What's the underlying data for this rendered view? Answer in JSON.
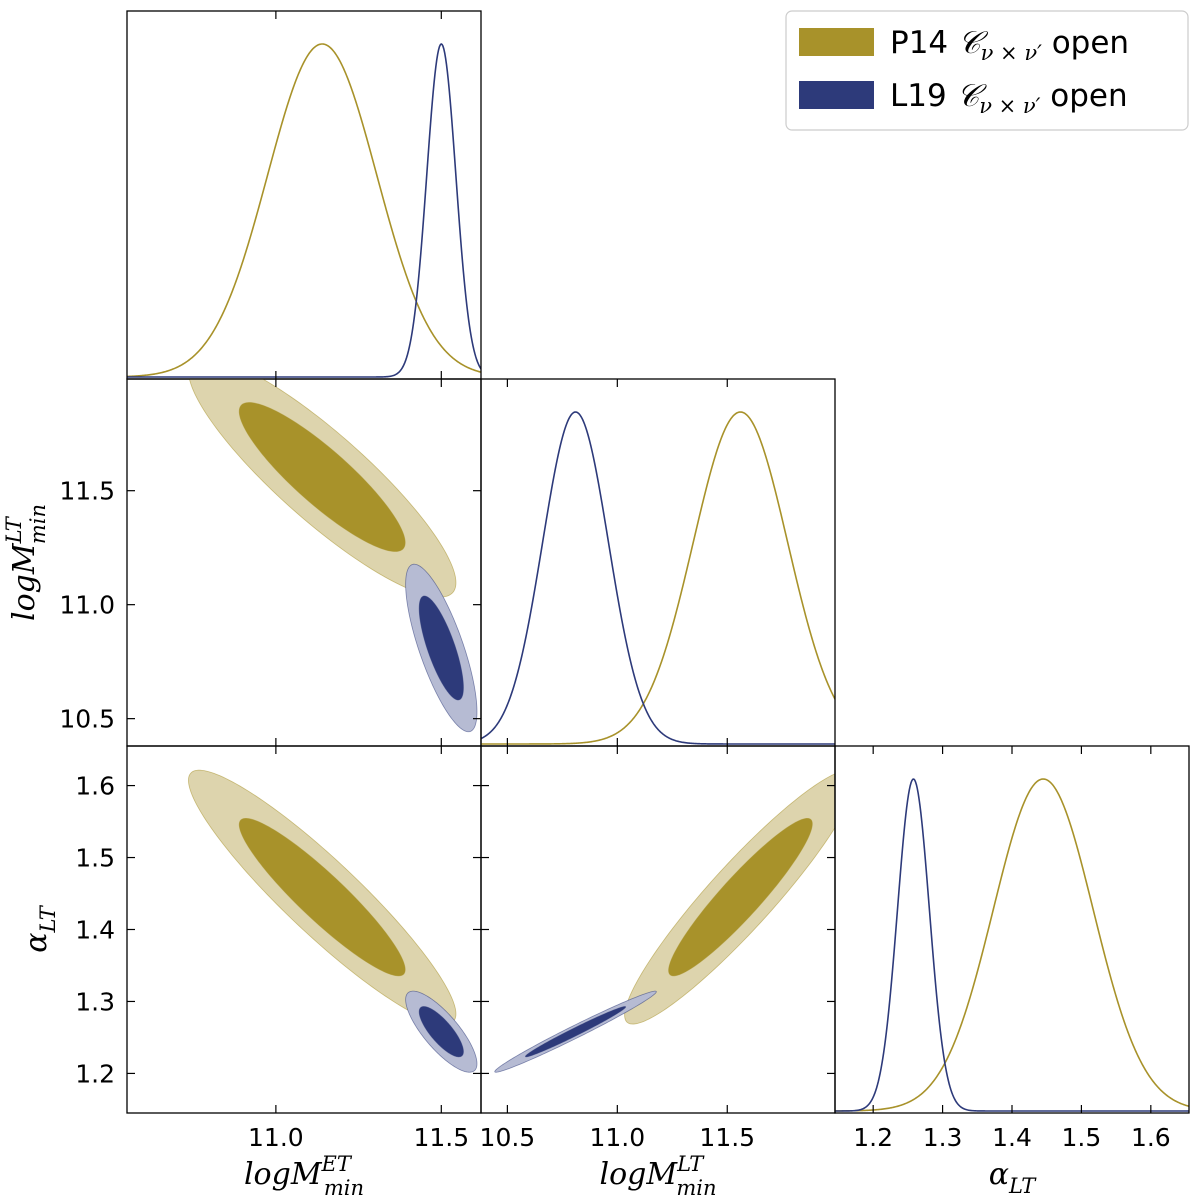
{
  "chart_data": {
    "type": "corner",
    "legend": {
      "placement": "top-right",
      "entries": [
        {
          "prefix": "P14",
          "math": "𝒞",
          "math_sub": "ν × ν′",
          "suffix": "open",
          "color": "#a8922a"
        },
        {
          "prefix": "L19",
          "math": "𝒞",
          "math_sub": "ν × ν′",
          "suffix": "open",
          "color": "#2d3a7a"
        }
      ]
    },
    "parameters": [
      {
        "key": "logM_ET",
        "label_main": "logM",
        "label_sub": "min",
        "label_sup": "ET",
        "range": [
          10.55,
          11.62
        ],
        "ticks": [
          "11.0",
          "11.5"
        ]
      },
      {
        "key": "logM_LT",
        "label_main": "logM",
        "label_sub": "min",
        "label_sup": "LT",
        "range": [
          10.38,
          11.99
        ],
        "ticks": [
          "10.5",
          "11.0",
          "11.5"
        ]
      },
      {
        "key": "alpha_LT",
        "label_main": "α",
        "label_sub": "LT",
        "label_sup": "",
        "range": [
          1.145,
          1.655
        ],
        "ticks": [
          "1.2",
          "1.3",
          "1.4",
          "1.5",
          "1.6"
        ]
      }
    ],
    "series": [
      {
        "name": "P14",
        "color": "#a8922a",
        "fill_inner": "#a8922a",
        "fill_outer": "#ddd4ad",
        "mean": [
          11.14,
          11.56,
          1.445
        ],
        "sigma": [
          0.165,
          0.215,
          0.072
        ],
        "corr": {
          "0-1": -0.88,
          "0-2": -0.92,
          "1-2": 0.93
        }
      },
      {
        "name": "L19",
        "color": "#2d3a7a",
        "fill_inner": "#2d3a7a",
        "fill_outer": "#b6bbd3",
        "mean": [
          11.5,
          10.81,
          1.258
        ],
        "sigma": [
          0.044,
          0.15,
          0.023
        ],
        "corr": {
          "0-1": -0.76,
          "0-2": -0.79,
          "1-2": 0.985
        }
      }
    ]
  }
}
